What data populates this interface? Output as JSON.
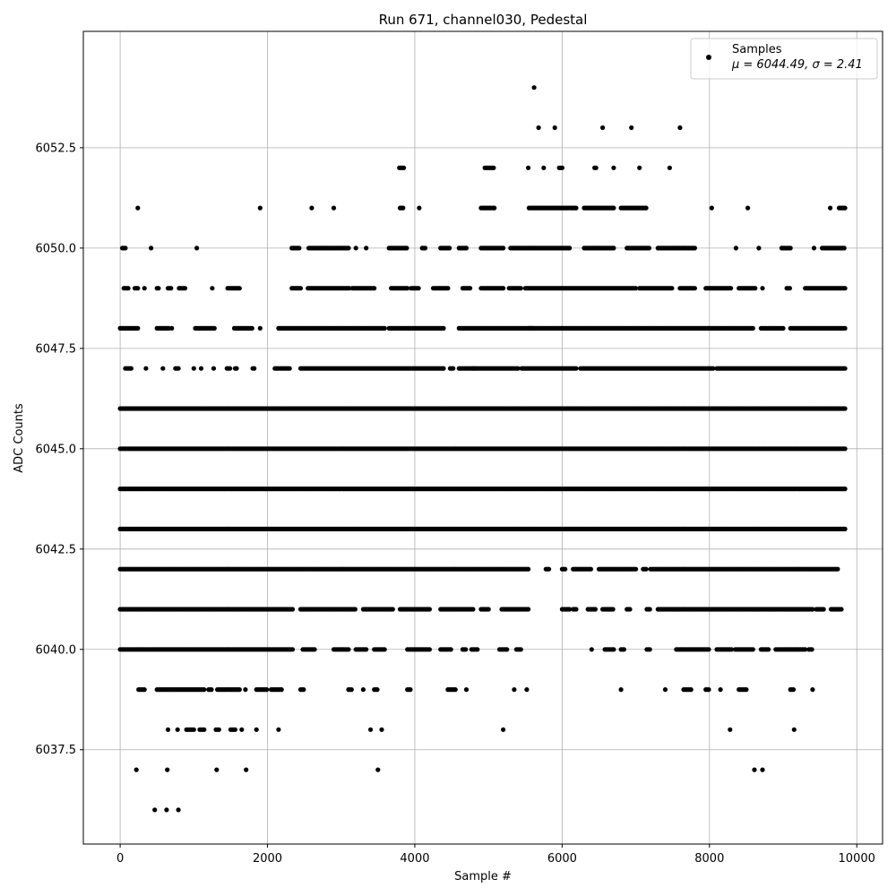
{
  "chart_data": {
    "type": "scatter",
    "title": "Run 671, channel030, Pedestal",
    "xlabel": "Sample #",
    "ylabel": "ADC Counts",
    "xlim": [
      -500,
      10350
    ],
    "ylim": [
      6035.15,
      6055.4
    ],
    "xticks": [
      0,
      2000,
      4000,
      6000,
      8000,
      10000
    ],
    "xtick_labels": [
      "0",
      "2000",
      "4000",
      "6000",
      "8000",
      "10000"
    ],
    "yticks": [
      6037.5,
      6040.0,
      6042.5,
      6045.0,
      6047.5,
      6050.0,
      6052.5
    ],
    "ytick_labels": [
      "6037.5",
      "6040.0",
      "6042.5",
      "6045.0",
      "6047.5",
      "6050.0",
      "6052.5"
    ],
    "grid": true,
    "legend": {
      "placement": "upper right",
      "entries": [
        {
          "label": "Samples",
          "stat": "μ = 6044.49, σ = 2.41"
        }
      ]
    },
    "marker_color": "#000000",
    "series": [
      {
        "name": "Samples",
        "levels": [
          {
            "y": 6054,
            "x_ranges": [
              [
                5620,
                5620
              ]
            ]
          },
          {
            "y": 6053,
            "x_ranges": [
              [
                5680,
                5680
              ],
              [
                5900,
                5900
              ],
              [
                6550,
                6550
              ],
              [
                6940,
                6940
              ],
              [
                7600,
                7600
              ]
            ]
          },
          {
            "y": 6052,
            "x_ranges": [
              [
                3790,
                3850
              ],
              [
                4950,
                5080
              ],
              [
                5540,
                5540
              ],
              [
                5750,
                5750
              ],
              [
                5960,
                6010
              ],
              [
                6440,
                6460
              ],
              [
                6700,
                6700
              ],
              [
                7050,
                7050
              ],
              [
                7460,
                7460
              ]
            ]
          },
          {
            "y": 6051,
            "x_ranges": [
              [
                240,
                240
              ],
              [
                1900,
                1900
              ],
              [
                2600,
                2600
              ],
              [
                2900,
                2900
              ],
              [
                3800,
                3840
              ],
              [
                4060,
                4060
              ],
              [
                4900,
                5080
              ],
              [
                5550,
                6200
              ],
              [
                6300,
                6700
              ],
              [
                6800,
                7150
              ],
              [
                8030,
                8030
              ],
              [
                8520,
                8520
              ],
              [
                9640,
                9640
              ],
              [
                9760,
                9840
              ]
            ]
          },
          {
            "y": 6050,
            "x_ranges": [
              [
                30,
                80
              ],
              [
                420,
                420
              ],
              [
                1040,
                1040
              ],
              [
                2330,
                2430
              ],
              [
                2560,
                3100
              ],
              [
                3200,
                3200
              ],
              [
                3340,
                3340
              ],
              [
                3650,
                3900
              ],
              [
                4100,
                4150
              ],
              [
                4350,
                4480
              ],
              [
                4600,
                4700
              ],
              [
                4900,
                5200
              ],
              [
                5300,
                6100
              ],
              [
                6300,
                6700
              ],
              [
                6880,
                7180
              ],
              [
                7300,
                7800
              ],
              [
                8360,
                8360
              ],
              [
                8670,
                8670
              ],
              [
                8980,
                9100
              ],
              [
                9420,
                9420
              ],
              [
                9530,
                9840
              ]
            ]
          },
          {
            "y": 6049,
            "x_ranges": [
              [
                50,
                120
              ],
              [
                200,
                250
              ],
              [
                330,
                330
              ],
              [
                500,
                520
              ],
              [
                650,
                700
              ],
              [
                800,
                880
              ],
              [
                1250,
                1260
              ],
              [
                1460,
                1620
              ],
              [
                2330,
                2450
              ],
              [
                2550,
                3120
              ],
              [
                3150,
                3450
              ],
              [
                3680,
                3900
              ],
              [
                3950,
                4050
              ],
              [
                4250,
                4450
              ],
              [
                4650,
                4750
              ],
              [
                4900,
                5200
              ],
              [
                5280,
                5450
              ],
              [
                5500,
                7000
              ],
              [
                7050,
                7500
              ],
              [
                7600,
                7800
              ],
              [
                7950,
                8300
              ],
              [
                8400,
                8620
              ],
              [
                8720,
                8720
              ],
              [
                9050,
                9100
              ],
              [
                9300,
                9840
              ]
            ]
          },
          {
            "y": 6048,
            "x_ranges": [
              [
                0,
                250
              ],
              [
                500,
                660
              ],
              [
                700,
                700
              ],
              [
                1020,
                1280
              ],
              [
                1550,
                1800
              ],
              [
                1900,
                1900
              ],
              [
                2150,
                3600
              ],
              [
                3650,
                4400
              ],
              [
                4600,
                5600
              ],
              [
                5550,
                8600
              ],
              [
                8700,
                9000
              ],
              [
                9100,
                9840
              ]
            ]
          },
          {
            "y": 6047,
            "x_ranges": [
              [
                70,
                150
              ],
              [
                350,
                350
              ],
              [
                580,
                580
              ],
              [
                750,
                800
              ],
              [
                1000,
                1000
              ],
              [
                1100,
                1100
              ],
              [
                1270,
                1270
              ],
              [
                1450,
                1500
              ],
              [
                1560,
                1580
              ],
              [
                1800,
                1830
              ],
              [
                2100,
                2300
              ],
              [
                2450,
                4400
              ],
              [
                4480,
                4520
              ],
              [
                4600,
                4800
              ],
              [
                4800,
                5400
              ],
              [
                5450,
                6200
              ],
              [
                6250,
                8050
              ],
              [
                8100,
                9840
              ]
            ]
          },
          {
            "y": 6046,
            "x_ranges": [
              [
                0,
                9840
              ]
            ]
          },
          {
            "y": 6045,
            "x_ranges": [
              [
                0,
                9840
              ]
            ]
          },
          {
            "y": 6044,
            "x_ranges": [
              [
                0,
                9840
              ]
            ]
          },
          {
            "y": 6043,
            "x_ranges": [
              [
                0,
                9840
              ]
            ]
          },
          {
            "y": 6042,
            "x_ranges": [
              [
                0,
                5550
              ],
              [
                5780,
                5820
              ],
              [
                6000,
                6050
              ],
              [
                6150,
                6400
              ],
              [
                6500,
                7000
              ],
              [
                7100,
                7150
              ],
              [
                7200,
                9750
              ]
            ]
          },
          {
            "y": 6041,
            "x_ranges": [
              [
                0,
                2350
              ],
              [
                2450,
                3200
              ],
              [
                3300,
                3700
              ],
              [
                3800,
                4200
              ],
              [
                4350,
                4800
              ],
              [
                4900,
                5000
              ],
              [
                5180,
                5550
              ],
              [
                6000,
                6100
              ],
              [
                6150,
                6200
              ],
              [
                6350,
                6450
              ],
              [
                6550,
                6700
              ],
              [
                6880,
                6930
              ],
              [
                7150,
                7200
              ],
              [
                7300,
                9400
              ],
              [
                9450,
                9550
              ],
              [
                9650,
                9800
              ]
            ]
          },
          {
            "y": 6040,
            "x_ranges": [
              [
                0,
                2350
              ],
              [
                2480,
                2650
              ],
              [
                2900,
                3100
              ],
              [
                3200,
                3350
              ],
              [
                3450,
                3600
              ],
              [
                3900,
                4200
              ],
              [
                4350,
                4500
              ],
              [
                4650,
                4700
              ],
              [
                4770,
                4850
              ],
              [
                5150,
                5250
              ],
              [
                5380,
                5450
              ],
              [
                6400,
                6400
              ],
              [
                6580,
                6700
              ],
              [
                6800,
                6850
              ],
              [
                7150,
                7200
              ],
              [
                7550,
                8000
              ],
              [
                8100,
                8300
              ],
              [
                8350,
                8600
              ],
              [
                8700,
                8800
              ],
              [
                8900,
                9300
              ],
              [
                9350,
                9400
              ]
            ]
          },
          {
            "y": 6039,
            "x_ranges": [
              [
                250,
                330
              ],
              [
                500,
                1150
              ],
              [
                1200,
                1250
              ],
              [
                1320,
                1620
              ],
              [
                1700,
                1700
              ],
              [
                1850,
                2000
              ],
              [
                2050,
                2200
              ],
              [
                2450,
                2500
              ],
              [
                3100,
                3150
              ],
              [
                3300,
                3300
              ],
              [
                3450,
                3500
              ],
              [
                3900,
                3950
              ],
              [
                4450,
                4550
              ],
              [
                4700,
                4700
              ],
              [
                5350,
                5350
              ],
              [
                5520,
                5520
              ],
              [
                6800,
                6800
              ],
              [
                7400,
                7400
              ],
              [
                7650,
                7750
              ],
              [
                7950,
                8000
              ],
              [
                8150,
                8150
              ],
              [
                8400,
                8500
              ],
              [
                9100,
                9150
              ],
              [
                9400,
                9400
              ]
            ]
          },
          {
            "y": 6038,
            "x_ranges": [
              [
                650,
                650
              ],
              [
                780,
                780
              ],
              [
                900,
                1000
              ],
              [
                1080,
                1150
              ],
              [
                1300,
                1350
              ],
              [
                1500,
                1560
              ],
              [
                1650,
                1650
              ],
              [
                1850,
                1850
              ],
              [
                2150,
                2150
              ],
              [
                3400,
                3400
              ],
              [
                3550,
                3550
              ],
              [
                5200,
                5200
              ],
              [
                8280,
                8280
              ],
              [
                9150,
                9150
              ]
            ]
          },
          {
            "y": 6037,
            "x_ranges": [
              [
                220,
                220
              ],
              [
                640,
                640
              ],
              [
                1310,
                1310
              ],
              [
                1710,
                1710
              ],
              [
                3500,
                3500
              ],
              [
                8610,
                8610
              ],
              [
                8720,
                8720
              ]
            ]
          },
          {
            "y": 6036,
            "x_ranges": [
              [
                470,
                470
              ],
              [
                630,
                630
              ],
              [
                790,
                790
              ]
            ]
          }
        ]
      }
    ]
  }
}
